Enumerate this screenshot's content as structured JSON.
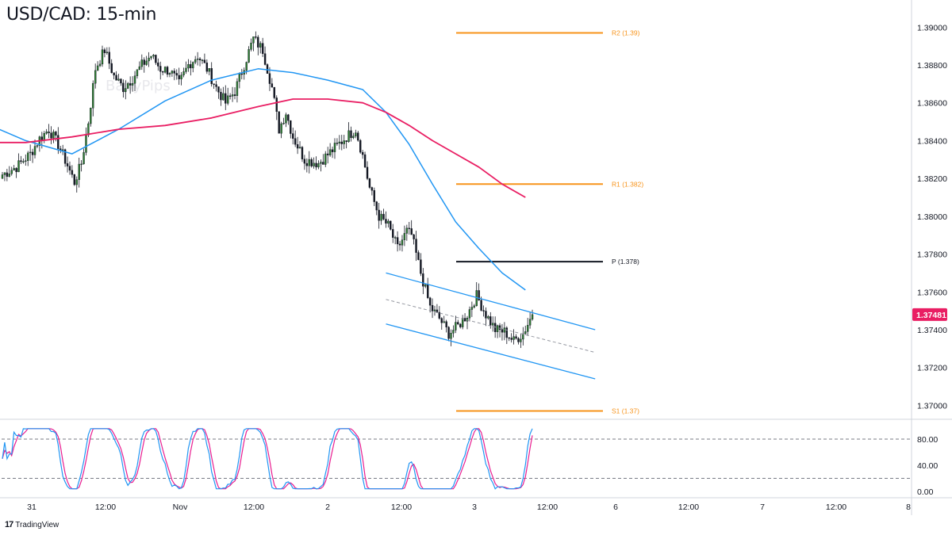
{
  "title": "USD/CAD: 15-min",
  "watermark": "BabyPips",
  "footer": {
    "brand": "TradingView"
  },
  "colors": {
    "up": "#2e7d32",
    "down": "#131722",
    "ma_fast": "#2196f3",
    "ma_slow": "#e91e63",
    "pivot": "#f7931a",
    "pp": "#131722",
    "channel": "#2196f3",
    "stoch_k": "#2196f3",
    "stoch_d": "#e91e90",
    "price_badge": "#e91e63"
  },
  "chart_data": [
    {
      "type": "candlestick",
      "ylim": [
        1.3688,
        1.3906
      ],
      "x_tick_labels": [
        "31",
        "12:00",
        "Nov",
        "12:00",
        "2",
        "12:00",
        "3",
        "12:00",
        "6",
        "12:00",
        "7",
        "12:00",
        "8"
      ],
      "y_tick_labels": [
        "1.39000",
        "1.38800",
        "1.38600",
        "1.38400",
        "1.38200",
        "1.38000",
        "1.37800",
        "1.37600",
        "1.37400",
        "1.37200",
        "1.37000"
      ],
      "y_ticks": [
        1.39,
        1.388,
        1.386,
        1.384,
        1.382,
        1.38,
        1.378,
        1.376,
        1.374,
        1.372,
        1.37
      ],
      "last_price": "1.37481",
      "price_path": [
        [
          0,
          1.3822
        ],
        [
          6,
          1.3826
        ],
        [
          12,
          1.3833
        ],
        [
          16,
          1.3841
        ],
        [
          20,
          1.3846
        ],
        [
          24,
          1.3838
        ],
        [
          28,
          1.3827
        ],
        [
          31,
          1.3818
        ],
        [
          34,
          1.3828
        ],
        [
          37,
          1.385
        ],
        [
          40,
          1.3878
        ],
        [
          44,
          1.3888
        ],
        [
          48,
          1.3874
        ],
        [
          52,
          1.3868
        ],
        [
          56,
          1.3873
        ],
        [
          60,
          1.388
        ],
        [
          64,
          1.3885
        ],
        [
          68,
          1.3878
        ],
        [
          72,
          1.3877
        ],
        [
          76,
          1.387
        ],
        [
          80,
          1.388
        ],
        [
          84,
          1.3885
        ],
        [
          88,
          1.3878
        ],
        [
          92,
          1.3868
        ],
        [
          96,
          1.386
        ],
        [
          100,
          1.3866
        ],
        [
          104,
          1.388
        ],
        [
          108,
          1.3894
        ],
        [
          112,
          1.3888
        ],
        [
          116,
          1.3868
        ],
        [
          119,
          1.3846
        ],
        [
          122,
          1.3855
        ],
        [
          125,
          1.3842
        ],
        [
          130,
          1.383
        ],
        [
          136,
          1.3828
        ],
        [
          142,
          1.3835
        ],
        [
          148,
          1.3842
        ],
        [
          152,
          1.3846
        ],
        [
          155,
          1.3832
        ],
        [
          158,
          1.3815
        ],
        [
          162,
          1.38
        ],
        [
          166,
          1.3795
        ],
        [
          170,
          1.3783
        ],
        [
          174,
          1.3792
        ],
        [
          176,
          1.379
        ],
        [
          180,
          1.377
        ],
        [
          184,
          1.3752
        ],
        [
          188,
          1.3746
        ],
        [
          192,
          1.3738
        ],
        [
          196,
          1.3742
        ],
        [
          200,
          1.3748
        ],
        [
          204,
          1.3758
        ],
        [
          208,
          1.3748
        ],
        [
          212,
          1.374
        ],
        [
          216,
          1.3739
        ],
        [
          220,
          1.3734
        ],
        [
          224,
          1.3738
        ],
        [
          228,
          1.3748
        ]
      ],
      "ma_fast": [
        [
          -9,
          1.385
        ],
        [
          10,
          1.384
        ],
        [
          30,
          1.3833
        ],
        [
          50,
          1.3846
        ],
        [
          70,
          1.3861
        ],
        [
          90,
          1.3872
        ],
        [
          110,
          1.3878
        ],
        [
          125,
          1.3876
        ],
        [
          140,
          1.3872
        ],
        [
          155,
          1.3867
        ],
        [
          165,
          1.3855
        ],
        [
          175,
          1.3838
        ],
        [
          185,
          1.3817
        ],
        [
          195,
          1.3797
        ],
        [
          205,
          1.3783
        ],
        [
          215,
          1.377
        ],
        [
          225,
          1.3761
        ]
      ],
      "ma_slow": [
        [
          -9,
          1.3839
        ],
        [
          10,
          1.3839
        ],
        [
          30,
          1.3842
        ],
        [
          50,
          1.3846
        ],
        [
          70,
          1.3848
        ],
        [
          90,
          1.3852
        ],
        [
          110,
          1.3858
        ],
        [
          125,
          1.3862
        ],
        [
          140,
          1.3862
        ],
        [
          155,
          1.386
        ],
        [
          165,
          1.3855
        ],
        [
          175,
          1.3848
        ],
        [
          185,
          1.384
        ],
        [
          195,
          1.3833
        ],
        [
          205,
          1.3826
        ],
        [
          215,
          1.3817
        ],
        [
          225,
          1.381
        ]
      ],
      "pivot_levels": [
        {
          "label": "R2 (1.39)",
          "value": 1.3897,
          "kind": "pivot"
        },
        {
          "label": "R1 (1.382)",
          "value": 1.3817,
          "kind": "pivot"
        },
        {
          "label": "P (1.378)",
          "value": 1.3776,
          "kind": "pp"
        },
        {
          "label": "S1 (1.37)",
          "value": 1.3697,
          "kind": "pivot"
        }
      ],
      "channel": {
        "upper": [
          [
            165,
            1.377
          ],
          [
            255,
            1.374
          ]
        ],
        "mid": [
          [
            165,
            1.3756
          ],
          [
            255,
            1.3728
          ]
        ],
        "lower": [
          [
            165,
            1.3743
          ],
          [
            255,
            1.3714
          ]
        ]
      }
    },
    {
      "type": "line",
      "name": "stochastic",
      "ylim": [
        0,
        100
      ],
      "y_tick_labels": [
        "80.00",
        "40.00",
        "0.00"
      ],
      "y_ticks": [
        80,
        40,
        0
      ],
      "levels": [
        80,
        20
      ]
    }
  ]
}
